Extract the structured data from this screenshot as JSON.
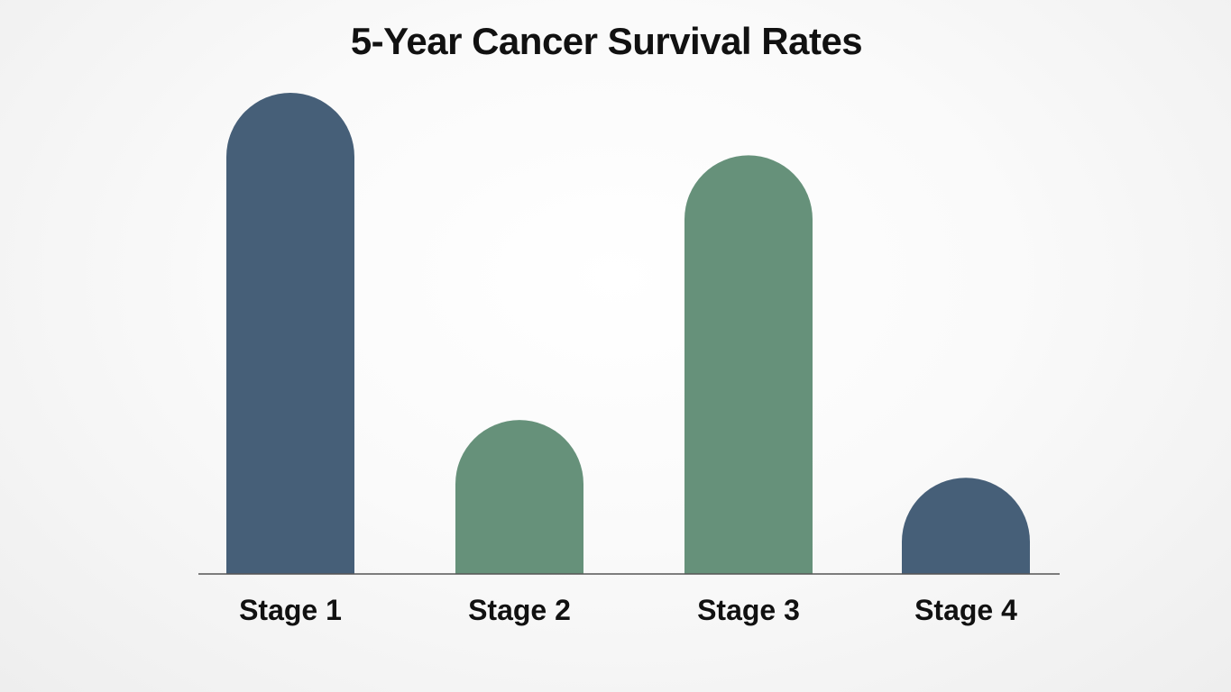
{
  "chart_data": {
    "type": "bar",
    "title": "5-Year Cancer Survival Rates",
    "categories": [
      "Stage 1",
      "Stage 2",
      "Stage 3",
      "Stage 4"
    ],
    "values": [
      100,
      32,
      87,
      20
    ],
    "ylim": [
      0,
      100
    ],
    "xlabel": "",
    "ylabel": "",
    "grid": false,
    "legend": "none",
    "colors": [
      "#465f78",
      "#66917a",
      "#66917a",
      "#465f78"
    ],
    "axis_color": "#555555"
  }
}
